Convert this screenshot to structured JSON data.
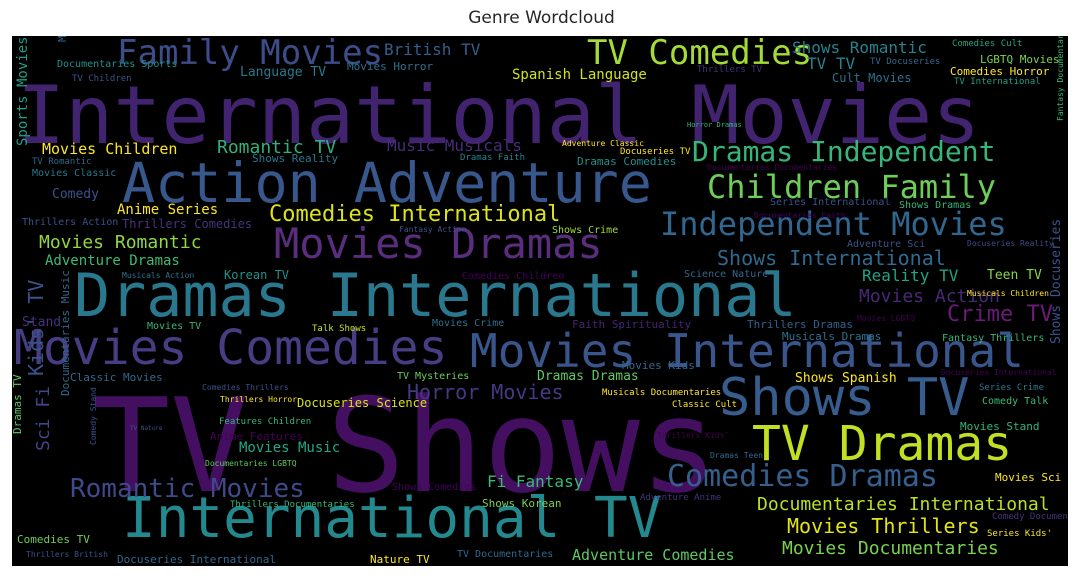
{
  "title": "Genre Wordcloud",
  "words": [
    {
      "text": "TV Shows",
      "color": "#440f60"
    },
    {
      "text": "International Movies",
      "color": "#42236f"
    },
    {
      "text": "Dramas International",
      "color": "#2a788e"
    },
    {
      "text": "International TV",
      "color": "#23898e"
    },
    {
      "text": "Action Adventure",
      "color": "#38578c"
    },
    {
      "text": "Movies Comedies",
      "color": "#463d82"
    },
    {
      "text": "Movies International",
      "color": "#39568c"
    },
    {
      "text": "Shows TV",
      "color": "#365d8d"
    },
    {
      "text": "TV Dramas",
      "color": "#c2df23"
    },
    {
      "text": "Movies Dramas",
      "color": "#5b2d7e"
    },
    {
      "text": "Family Movies",
      "color": "#3d4d8a"
    },
    {
      "text": "TV Comedies",
      "color": "#a5db36"
    },
    {
      "text": "Dramas Independent",
      "color": "#35b779"
    },
    {
      "text": "Children Family",
      "color": "#6ece58"
    },
    {
      "text": "Independent Movies",
      "color": "#31668e"
    },
    {
      "text": "Comedies International",
      "color": "#dde318"
    },
    {
      "text": "Comedies Dramas",
      "color": "#355f8d"
    },
    {
      "text": "Romantic Movies",
      "color": "#3e4a89"
    },
    {
      "text": "Horror Movies",
      "color": "#443983"
    },
    {
      "text": "Kids' TV",
      "color": "#3b528b"
    },
    {
      "text": "Documentaries International",
      "color": "#bddf26"
    },
    {
      "text": "Movies Thrillers",
      "color": "#e3e418"
    },
    {
      "text": "Movies Documentaries",
      "color": "#7ad151"
    },
    {
      "text": "Shows International",
      "color": "#2f6b8e"
    },
    {
      "text": "Crime TV",
      "color": "#6b1b7a"
    },
    {
      "text": "Movies Action",
      "color": "#482878"
    },
    {
      "text": "Movies Romantic",
      "color": "#8fd744"
    },
    {
      "text": "British TV",
      "color": "#355e8d"
    },
    {
      "text": "Shows Romantic",
      "color": "#26828e"
    },
    {
      "text": "TV TV",
      "color": "#26828e"
    },
    {
      "text": "Music Musicals",
      "color": "#472c7a"
    },
    {
      "text": "Romantic TV",
      "color": "#2db27d"
    },
    {
      "text": "Movies Children",
      "color": "#fde725"
    },
    {
      "text": "Anime Series",
      "color": "#fde725"
    },
    {
      "text": "Adventure Dramas",
      "color": "#3cbb75"
    },
    {
      "text": "Sci Fi",
      "color": "#414487"
    },
    {
      "text": "Fi Fantasy",
      "color": "#3aba76"
    },
    {
      "text": "Adventure Comedies",
      "color": "#5ec962"
    },
    {
      "text": "Sports Movies",
      "color": "#1f9e89"
    },
    {
      "text": "Spanish Language",
      "color": "#d2e21b"
    },
    {
      "text": "Language TV",
      "color": "#2a788e"
    },
    {
      "text": "Movies Horror",
      "color": "#2c728e"
    },
    {
      "text": "Thrillers TV",
      "color": "#472f7d"
    },
    {
      "text": "Comedies Horror",
      "color": "#fde725"
    },
    {
      "text": "Cult Movies",
      "color": "#2e6f8e"
    },
    {
      "text": "Reality TV",
      "color": "#20a486"
    },
    {
      "text": "Teen TV",
      "color": "#86d549"
    },
    {
      "text": "Korean TV",
      "color": "#20928c"
    },
    {
      "text": "Comedy",
      "color": "#3b528b"
    },
    {
      "text": "Movies Music",
      "color": "#22a785"
    },
    {
      "text": "Shows Reality",
      "color": "#2a788e"
    },
    {
      "text": "Dramas Comedies",
      "color": "#21918c"
    },
    {
      "text": "Shows Crime",
      "color": "#a2da37"
    },
    {
      "text": "Dramas Dramas",
      "color": "#5ec962"
    },
    {
      "text": "Shows Spanish",
      "color": "#fde725"
    },
    {
      "text": "Docuseries Science",
      "color": "#dde318"
    },
    {
      "text": "Musicals Dramas",
      "color": "#2c718e"
    },
    {
      "text": "Faith Spirituality",
      "color": "#482374"
    },
    {
      "text": "Thrillers Dramas",
      "color": "#34608d"
    },
    {
      "text": "Movies Crime",
      "color": "#2e6f8e"
    },
    {
      "text": "Movies Stand",
      "color": "#31b57b"
    },
    {
      "text": "Movies Sci",
      "color": "#fde725"
    },
    {
      "text": "Comedy Talk",
      "color": "#3cbb75"
    },
    {
      "text": "Series Crime",
      "color": "#2a788e"
    },
    {
      "text": "Documentaries Sports",
      "color": "#21918c"
    },
    {
      "text": "TV Children",
      "color": "#3b528b"
    },
    {
      "text": "Comedies Cult",
      "color": "#22a785"
    },
    {
      "text": "LGBTQ Movies",
      "color": "#7ad151"
    },
    {
      "text": "TV Docuseries",
      "color": "#31688e"
    },
    {
      "text": "TV International",
      "color": "#1fa187"
    },
    {
      "text": "Series International",
      "color": "#3b528b"
    },
    {
      "text": "Shows Dramas",
      "color": "#35b779"
    },
    {
      "text": "Adventure Sci",
      "color": "#3b528b"
    },
    {
      "text": "Docuseries Reality",
      "color": "#3e4a89"
    },
    {
      "text": "Musicals Children",
      "color": "#fde725"
    },
    {
      "text": "Science Nature",
      "color": "#31688e"
    },
    {
      "text": "Fantasy Action",
      "color": "#3b528b"
    },
    {
      "text": "Comedies Children",
      "color": "#44015f"
    },
    {
      "text": "Musicals Action",
      "color": "#2c718e"
    },
    {
      "text": "Movies TV",
      "color": "#35b779"
    },
    {
      "text": "Talk Shows",
      "color": "#c8e020"
    },
    {
      "text": "Stand",
      "color": "#46327e"
    },
    {
      "text": "Classic Movies",
      "color": "#31688e"
    },
    {
      "text": "TV Mysteries",
      "color": "#6ece58"
    },
    {
      "text": "Thrillers Horror",
      "color": "#fde725"
    },
    {
      "text": "Features Children",
      "color": "#35b779"
    },
    {
      "text": "Anime Features",
      "color": "#440154"
    },
    {
      "text": "Documentaries LGBTQ",
      "color": "#5ec962"
    },
    {
      "text": "Thrillers Documentaries",
      "color": "#35b779"
    },
    {
      "text": "Shows Korean",
      "color": "#7ad151"
    },
    {
      "text": "Comedies TV",
      "color": "#6ece58"
    },
    {
      "text": "Thrillers British",
      "color": "#3b528b"
    },
    {
      "text": "Docuseries International",
      "color": "#31688e"
    },
    {
      "text": "Nature TV",
      "color": "#fde725"
    },
    {
      "text": "TV Documentaries",
      "color": "#31688e"
    },
    {
      "text": "Shows Comedies",
      "color": "#44015f"
    },
    {
      "text": "Movies Kids'",
      "color": "#31688e"
    },
    {
      "text": "Adventure Anime",
      "color": "#46327e"
    },
    {
      "text": "Dramas Teen",
      "color": "#31688e"
    },
    {
      "text": "Thrillers Kids'",
      "color": "#440154"
    },
    {
      "text": "Series Kids'",
      "color": "#fde725"
    },
    {
      "text": "Comedy Documentaries",
      "color": "#46327e"
    },
    {
      "text": "Documentaries Music",
      "color": "#31688e"
    },
    {
      "text": "Comedy Stand",
      "color": "#3b528b"
    },
    {
      "text": "Documentaries Documentaries",
      "color": "#440154"
    },
    {
      "text": "Dramas Faith",
      "color": "#26828e"
    },
    {
      "text": "Adventure Classic",
      "color": "#fde725"
    },
    {
      "text": "Docuseries TV",
      "color": "#fde725"
    },
    {
      "text": "Horror Dramas",
      "color": "#35b779"
    },
    {
      "text": "Movies LGBTQ",
      "color": "#440154"
    },
    {
      "text": "Dramas TV",
      "color": "#5ec962"
    },
    {
      "text": "Movies Sports",
      "color": "#31688e"
    },
    {
      "text": "TV Romantic",
      "color": "#31688e"
    },
    {
      "text": "Movies Classic",
      "color": "#2a788e"
    },
    {
      "text": "Thrillers Action",
      "color": "#3b528b"
    },
    {
      "text": "Thrillers Comedies",
      "color": "#46327e"
    },
    {
      "text": "Fantasy Thrillers",
      "color": "#35b779"
    },
    {
      "text": "Classic Cult",
      "color": "#fde725"
    },
    {
      "text": "Musicals Documentaries",
      "color": "#fde725"
    },
    {
      "text": "Shows Docuseries",
      "color": "#3b528b"
    },
    {
      "text": "Fantasy Documentaries",
      "color": "#35b779"
    },
    {
      "text": "Documentaries Faith",
      "color": "#44015f"
    },
    {
      "text": "Docuseries International",
      "color": "#440154"
    },
    {
      "text": "Comedies Thrillers",
      "color": "#3b528b"
    },
    {
      "text": "TV Nature",
      "color": "#3b528b"
    }
  ]
}
